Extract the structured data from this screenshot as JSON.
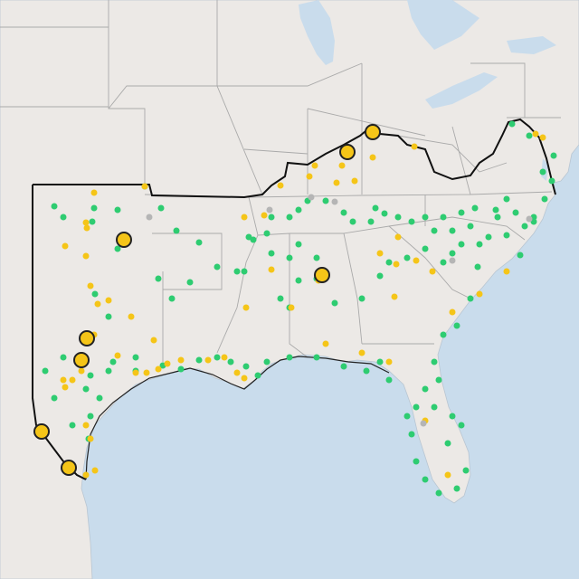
{
  "map": {
    "colors": {
      "water": "#c9dcec",
      "land": "#ece9e6",
      "land_foreign": "#e6e2de",
      "state_border": "#aaaaaa",
      "region_outline": "#111111",
      "green_marker": "#2ecc71",
      "yellow_marker": "#f5c518",
      "gray_marker": "#b5b5b5",
      "large_marker_fill": "#f5c518",
      "large_marker_stroke": "#222222"
    },
    "markers": {
      "large_yellow": 8,
      "small_yellow": "many",
      "green": "many",
      "gray": "few"
    }
  }
}
